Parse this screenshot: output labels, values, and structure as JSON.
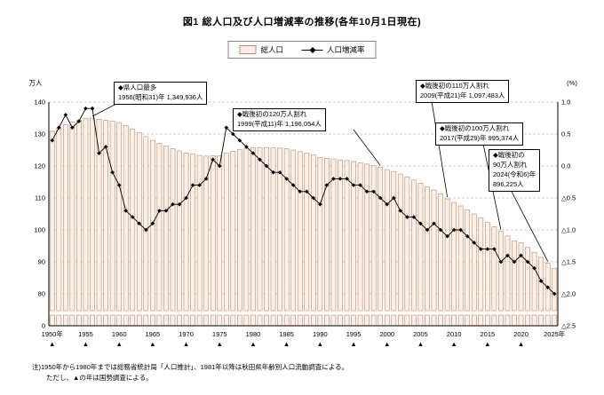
{
  "title": "図1 総人口及び人口増減率の推移(各年10月1日現在)",
  "legend": {
    "items": [
      {
        "label": "総人口",
        "marker": "bar-swatch"
      },
      {
        "label": "人口増減率",
        "marker": "line-with-diamond"
      }
    ]
  },
  "chart_data": {
    "type": "bar+line",
    "title": "図1 総人口及び人口増減率の推移(各年10月1日現在)",
    "years": [
      1950,
      1951,
      1952,
      1953,
      1954,
      1955,
      1956,
      1957,
      1958,
      1959,
      1960,
      1961,
      1962,
      1963,
      1964,
      1965,
      1966,
      1967,
      1968,
      1969,
      1970,
      1971,
      1972,
      1973,
      1974,
      1975,
      1976,
      1977,
      1978,
      1979,
      1980,
      1981,
      1982,
      1983,
      1984,
      1985,
      1986,
      1987,
      1988,
      1989,
      1990,
      1991,
      1992,
      1993,
      1994,
      1995,
      1996,
      1997,
      1998,
      1999,
      2000,
      2001,
      2002,
      2003,
      2004,
      2005,
      2006,
      2007,
      2008,
      2009,
      2010,
      2011,
      2012,
      2013,
      2014,
      2015,
      2016,
      2017,
      2018,
      2019,
      2020,
      2021,
      2022,
      2023,
      2024,
      2025
    ],
    "series": [
      {
        "name": "総人口",
        "type": "bar",
        "axis": "left",
        "unit": "万人",
        "values": [
          130.9,
          131.9,
          132.9,
          133.7,
          134.4,
          134.9,
          135.0,
          134.6,
          134.3,
          134.0,
          133.6,
          132.7,
          131.6,
          130.4,
          129.2,
          128.0,
          127.1,
          126.2,
          125.4,
          124.7,
          124.1,
          123.7,
          123.3,
          123.1,
          123.2,
          123.2,
          124.0,
          124.6,
          125.1,
          125.5,
          125.7,
          125.8,
          125.8,
          125.7,
          125.6,
          125.4,
          125.0,
          124.5,
          124.0,
          123.4,
          122.7,
          122.4,
          122.2,
          121.9,
          121.7,
          121.4,
          121.0,
          120.6,
          120.1,
          119.6,
          118.9,
          118.3,
          117.5,
          116.6,
          115.6,
          114.6,
          113.5,
          112.5,
          111.3,
          109.7,
          108.6,
          107.5,
          106.3,
          105.0,
          103.7,
          102.3,
          101.0,
          99.5,
          98.1,
          96.6,
          96.0,
          94.5,
          93.0,
          91.4,
          89.6,
          88.0
        ]
      },
      {
        "name": "人口増減率",
        "type": "line",
        "axis": "right",
        "unit": "%",
        "values": [
          0.4,
          0.6,
          0.8,
          0.6,
          0.7,
          0.9,
          0.9,
          0.2,
          0.3,
          -0.1,
          -0.3,
          -0.7,
          -0.8,
          -0.9,
          -1.0,
          -0.9,
          -0.7,
          -0.7,
          -0.6,
          -0.6,
          -0.5,
          -0.3,
          -0.3,
          -0.2,
          0.1,
          0.0,
          0.6,
          0.5,
          0.4,
          0.3,
          0.2,
          0.1,
          0.0,
          -0.1,
          -0.1,
          -0.2,
          -0.3,
          -0.4,
          -0.4,
          -0.5,
          -0.6,
          -0.3,
          -0.2,
          -0.2,
          -0.2,
          -0.3,
          -0.3,
          -0.4,
          -0.4,
          -0.5,
          -0.6,
          -0.5,
          -0.7,
          -0.8,
          -0.8,
          -0.9,
          -1.0,
          -0.9,
          -1.0,
          -1.1,
          -1.0,
          -1.0,
          -1.1,
          -1.2,
          -1.3,
          -1.3,
          -1.3,
          -1.5,
          -1.4,
          -1.5,
          -1.4,
          -1.5,
          -1.6,
          -1.8,
          -1.9,
          -2.0
        ]
      }
    ],
    "left_axis": {
      "label": "万人",
      "ticks": [
        140,
        130,
        120,
        110,
        100,
        90,
        80
      ],
      "baseline_label": "0",
      "break": true
    },
    "right_axis": {
      "label": "(%)",
      "tick_labels": [
        "1.0",
        "0.5",
        "0.0",
        "△0.5",
        "△1.0",
        "△1.5",
        "△2.0",
        "△2.5"
      ],
      "max": 1.0,
      "min": -2.5
    },
    "x_tick_labels": [
      "1950年",
      "1955",
      "1960",
      "1965",
      "1970",
      "1975",
      "1980",
      "1985",
      "1990",
      "1995",
      "2000",
      "2005",
      "2010",
      "2015",
      "2020",
      "2025年"
    ],
    "census_marker": "▲",
    "census_years": [
      1950,
      1955,
      1960,
      1965,
      1970,
      1975,
      1980,
      1985,
      1990,
      1995,
      2000,
      2005,
      2010,
      2015,
      2020
    ],
    "grid": "dashed-horizontal",
    "legend_position": "top-center"
  },
  "annotations": [
    {
      "id": "max-population",
      "target_year": 1956,
      "lines": [
        "◆県人口最多",
        "1956(昭和31)年 1,349,936人"
      ]
    },
    {
      "id": "below-1200k",
      "target_year": 1999,
      "lines": [
        "◆戦後初の120万人割れ",
        "1999(平成11)年 1,196,054人"
      ]
    },
    {
      "id": "below-1100k",
      "target_year": 2009,
      "lines": [
        "◆戦後初の110万人割れ",
        "2009(平成21)年 1,097,483人"
      ]
    },
    {
      "id": "below-1000k",
      "target_year": 2017,
      "lines": [
        "◆戦後初の100万人割れ",
        "2017(平成29)年 995,374人"
      ]
    },
    {
      "id": "below-900k",
      "target_year": 2024,
      "lines": [
        "◆戦後初の",
        "90万人割れ",
        "2024(令和6)年",
        "896,225人"
      ]
    }
  ],
  "footnotes": [
    "注)1950年から1980年までは総務省統計局「人口推計」、1981年以降は秋田県年齢別人口流動調査による。",
    "ただし、▲の年は国勢調査による。"
  ],
  "colors": {
    "bar_fill": "#fcefe3",
    "bar_border": "#b98a70",
    "rate_line": "#000000",
    "grid_line": "#999999"
  }
}
